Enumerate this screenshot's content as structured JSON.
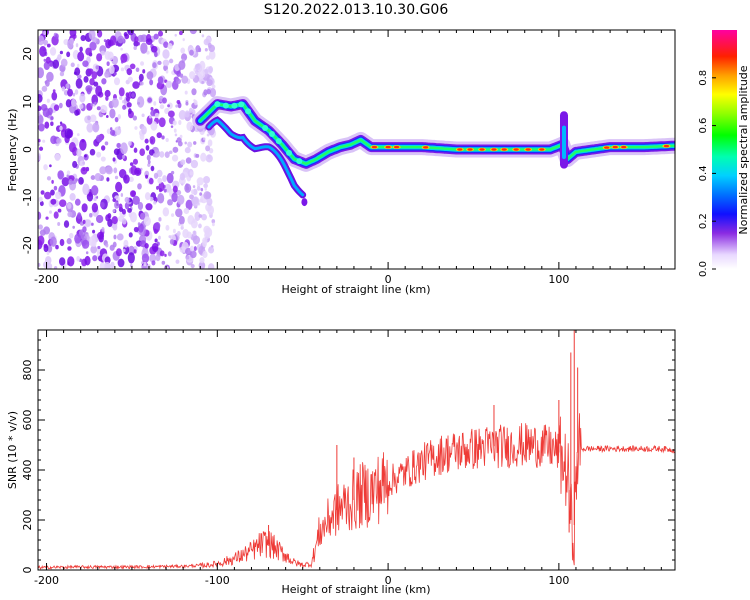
{
  "title": "S120.2022.013.10.30.G06",
  "chart_data": [
    {
      "type": "heatmap",
      "title": "S120.2022.013.10.30.G06",
      "xlabel": "Height of straight line (km)",
      "ylabel": "Frequency (Hz)",
      "xlim": [
        -205,
        168
      ],
      "ylim": [
        -25,
        25
      ],
      "x_ticks": [
        "-200",
        "-100",
        "0",
        "100"
      ],
      "y_ticks": [
        "-20",
        "-10",
        "0",
        "10",
        "20"
      ],
      "ridge": {
        "x": [
          -110,
          -100,
          -92,
          -85,
          -78,
          -70,
          -62,
          -55,
          -48,
          -42,
          -35,
          -28,
          -22,
          -16,
          -10,
          0,
          20,
          40,
          60,
          80,
          95,
          102,
          105,
          110,
          130,
          150,
          168
        ],
        "y": [
          6,
          9.5,
          9,
          9.5,
          6,
          4,
          1,
          -2,
          -3,
          -2,
          -0.5,
          0.5,
          1,
          2,
          0.5,
          0.5,
          0.5,
          0,
          0,
          0,
          0,
          1,
          -2,
          -0.5,
          0.5,
          0.5,
          0.8
        ]
      },
      "noise_region_x": [
        -205,
        -110
      ],
      "colorbar": {
        "label": "Normalized spectral amplitude",
        "range": [
          0.0,
          1.0
        ],
        "ticks": [
          "0.0",
          "0.2",
          "0.4",
          "0.6",
          "0.8"
        ]
      }
    },
    {
      "type": "line",
      "xlabel": "Height of straight line (km)",
      "ylabel": "SNR (10 * v/v)",
      "xlim": [
        -205,
        168
      ],
      "ylim": [
        0,
        960
      ],
      "x_ticks": [
        "-200",
        "-100",
        "0",
        "100"
      ],
      "y_ticks": [
        "0",
        "200",
        "400",
        "600",
        "800"
      ],
      "color": "#ee3a36",
      "series": [
        {
          "x": [
            -205,
            -180,
            -150,
            -120,
            -105,
            -100,
            -95,
            -90,
            -85,
            -80,
            -75,
            -70,
            -65,
            -60,
            -55,
            -50,
            -45,
            -40,
            -35,
            -30,
            -25,
            -20,
            -15,
            -10,
            -5,
            0,
            5,
            10,
            15,
            20,
            25,
            30,
            35,
            40,
            45,
            50,
            55,
            60,
            65,
            70,
            75,
            80,
            85,
            90,
            95,
            100,
            103,
            105,
            106,
            107,
            108,
            109,
            110,
            111,
            113,
            120,
            130,
            140,
            150,
            160,
            168
          ],
          "y": [
            10,
            12,
            12,
            15,
            20,
            25,
            35,
            45,
            60,
            75,
            100,
            110,
            80,
            60,
            30,
            20,
            25,
            150,
            200,
            240,
            260,
            280,
            300,
            310,
            330,
            350,
            370,
            390,
            410,
            430,
            445,
            460,
            470,
            475,
            480,
            485,
            490,
            495,
            495,
            495,
            500,
            500,
            500,
            495,
            490,
            470,
            420,
            380,
            320,
            200,
            160,
            180,
            300,
            470,
            485,
            485,
            485,
            485,
            485,
            485,
            480
          ]
        }
      ],
      "spikes": [
        {
          "x": -70,
          "y": 180
        },
        {
          "x": -30,
          "y": 500
        },
        {
          "x": -20,
          "y": 450
        },
        {
          "x": 62,
          "y": 660
        },
        {
          "x": 100,
          "y": 680
        },
        {
          "x": 107,
          "y": 870
        },
        {
          "x": 109,
          "y": 960
        },
        {
          "x": 111,
          "y": 810
        },
        {
          "x": 106,
          "y": 150
        }
      ]
    }
  ]
}
